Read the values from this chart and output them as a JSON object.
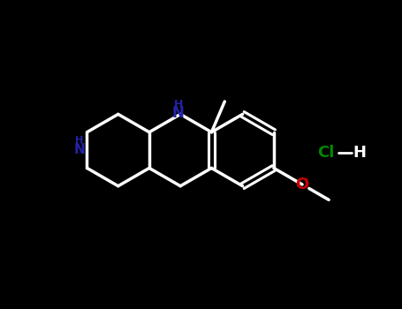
{
  "bg_color": "#000000",
  "bond_color_white": "#ffffff",
  "nh_color": "#2222aa",
  "o_color": "#cc0000",
  "cl_color": "#008800",
  "line_width": 2.5,
  "figsize": [
    4.55,
    3.5
  ],
  "dpi": 100,
  "xlim": [
    0,
    9.1
  ],
  "ylim": [
    0,
    7.0
  ]
}
